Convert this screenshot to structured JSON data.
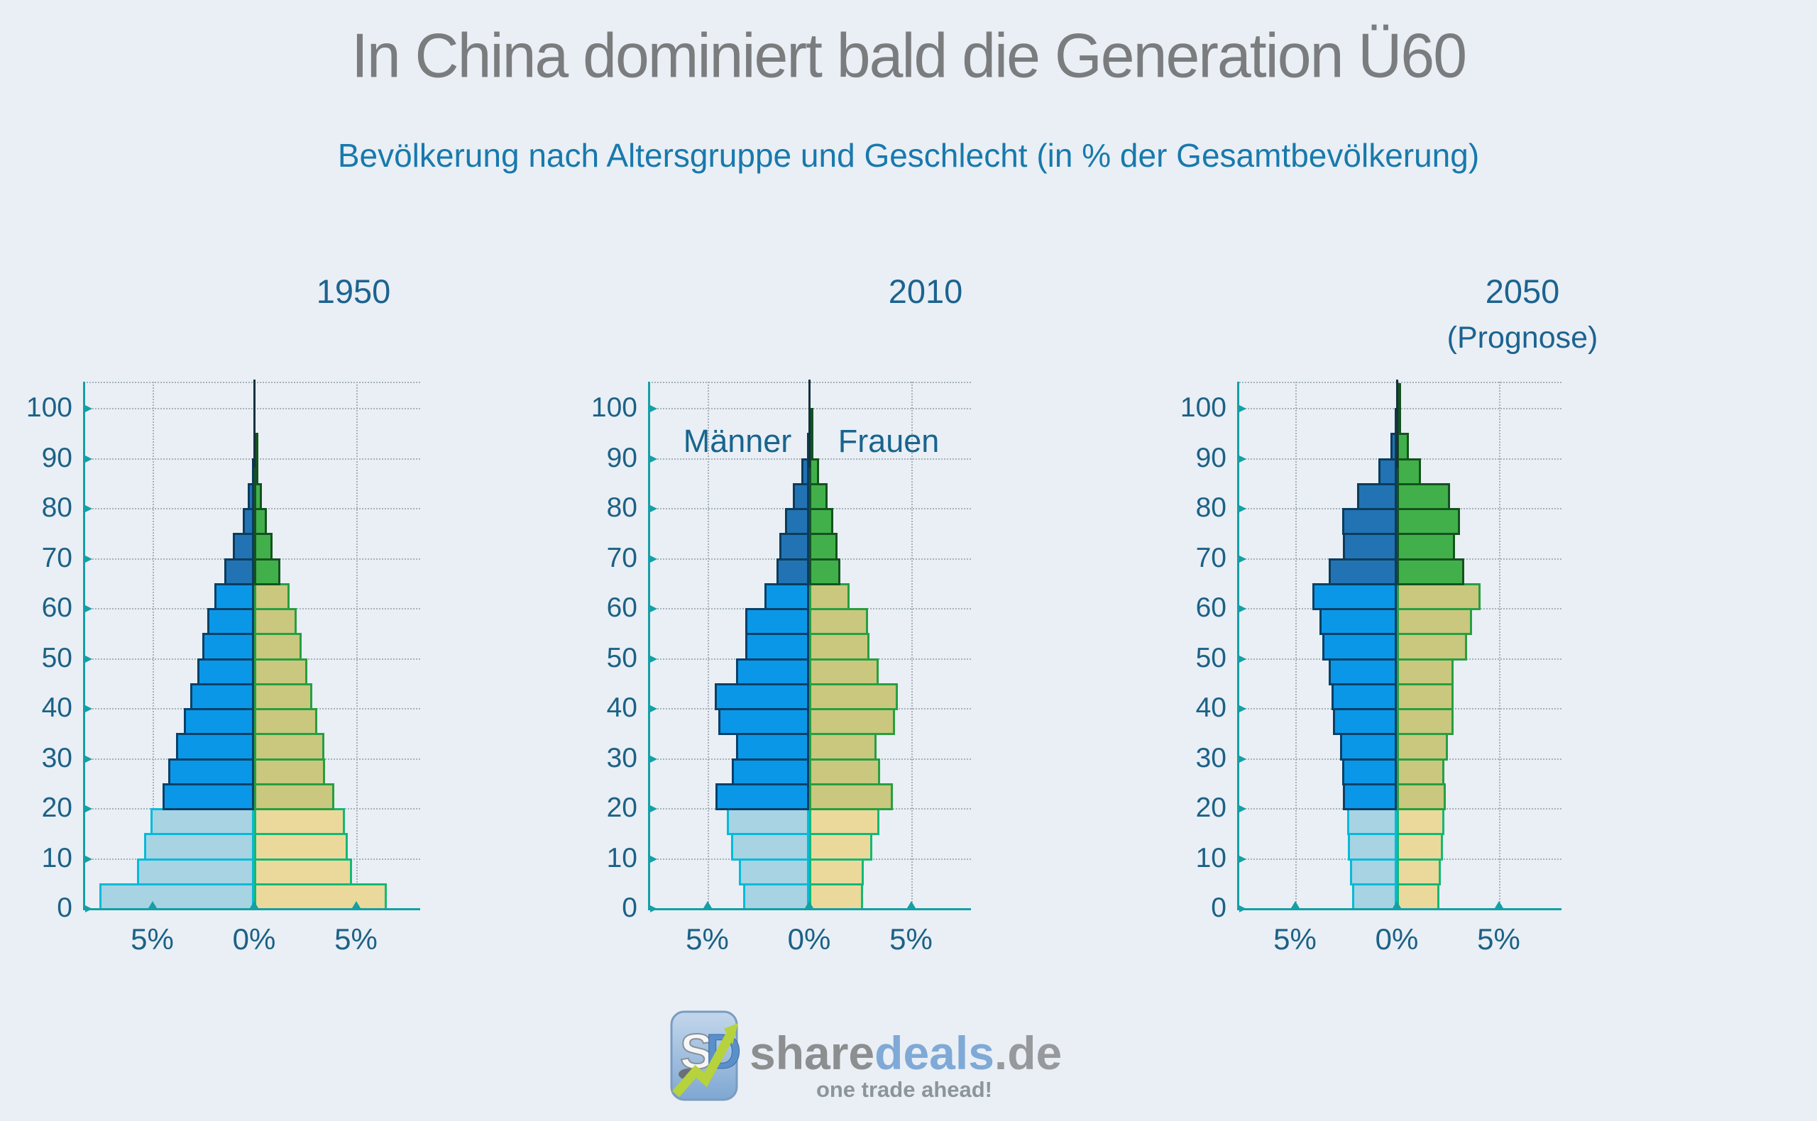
{
  "page": {
    "title": "In China dominiert bald die Generation Ü60",
    "subtitle": "Bevölkerung nach Altersgruppe und Geschlecht (in % der Gesamtbevölkerung)"
  },
  "legend": {
    "male": "Männer",
    "female": "Frauen"
  },
  "axis": {
    "x_tick_labels": [
      "5%",
      "0%",
      "5%"
    ],
    "y_tick_labels": [
      "0",
      "10",
      "20",
      "30",
      "40",
      "50",
      "60",
      "70",
      "80",
      "90",
      "100"
    ]
  },
  "logo": {
    "badge_text": "SD",
    "name_gray": "share",
    "name_blue": "deals",
    "name_suffix": ".de",
    "tagline": "one trade ahead!"
  },
  "colors": {
    "background": "#e9eff5",
    "title_gray": "#7a7c7e",
    "subtitle_blue": "#1879ad",
    "label_blue": "#1c6186",
    "axis_teal": "#13a0a6",
    "grid_gray": "#a6b1b9",
    "spike_dark": "#14323c",
    "male": {
      "young": {
        "fill": "#a7d3e3",
        "stroke": "#07bad8"
      },
      "mid": {
        "fill": "#0b97e8",
        "stroke": "#0a4066"
      },
      "old": {
        "fill": "#2273b4",
        "stroke": "#0a3c5c"
      }
    },
    "female": {
      "young": {
        "fill": "#ead99b",
        "stroke": "#14b876"
      },
      "mid": {
        "fill": "#c9c87e",
        "stroke": "#279f41"
      },
      "old": {
        "fill": "#41b04a",
        "stroke": "#14521f"
      }
    },
    "age_class_breaks": {
      "young_max_age": 19,
      "mid_max_age": 64
    }
  },
  "chart_data": [
    {
      "type": "bar",
      "orientation": "population-pyramid",
      "title": "1950",
      "subtitle": "",
      "xlim_pct": [
        -8,
        8
      ],
      "x_ticks_pct": [
        -5,
        0,
        5
      ],
      "ylim_age": [
        0,
        105
      ],
      "age_groups": [
        "0-4",
        "5-9",
        "10-14",
        "15-19",
        "20-24",
        "25-29",
        "30-34",
        "35-39",
        "40-44",
        "45-49",
        "50-54",
        "55-59",
        "60-64",
        "65-69",
        "70-74",
        "75-79",
        "80-84",
        "85-89",
        "90-94",
        "95-99",
        "100+"
      ],
      "series": [
        {
          "name": "Männer",
          "side": "left",
          "values": [
            7.6,
            5.75,
            5.4,
            5.1,
            4.5,
            4.2,
            3.85,
            3.45,
            3.15,
            2.8,
            2.55,
            2.3,
            1.95,
            1.45,
            1.05,
            0.57,
            0.33,
            0.12,
            0.04,
            0.01,
            0.005
          ]
        },
        {
          "name": "Frauen",
          "side": "right",
          "values": [
            6.5,
            4.8,
            4.6,
            4.45,
            3.95,
            3.5,
            3.45,
            3.1,
            2.85,
            2.6,
            2.35,
            2.1,
            1.75,
            1.3,
            0.92,
            0.62,
            0.4,
            0.16,
            0.06,
            0.02,
            0.01
          ]
        }
      ]
    },
    {
      "type": "bar",
      "orientation": "population-pyramid",
      "title": "2010",
      "subtitle": "",
      "xlim_pct": [
        -8,
        8
      ],
      "x_ticks_pct": [
        -5,
        0,
        5
      ],
      "ylim_age": [
        0,
        105
      ],
      "age_groups": [
        "0-4",
        "5-9",
        "10-14",
        "15-19",
        "20-24",
        "25-29",
        "30-34",
        "35-39",
        "40-44",
        "45-49",
        "50-54",
        "55-59",
        "60-64",
        "65-69",
        "70-74",
        "75-79",
        "80-84",
        "85-89",
        "90-94",
        "95-99",
        "100+"
      ],
      "series": [
        {
          "name": "Männer",
          "side": "left",
          "values": [
            3.25,
            3.45,
            3.85,
            4.05,
            4.6,
            3.8,
            3.6,
            4.45,
            4.65,
            3.6,
            3.15,
            3.15,
            2.2,
            1.6,
            1.45,
            1.2,
            0.8,
            0.4,
            0.12,
            0.03,
            0.01
          ]
        },
        {
          "name": "Frauen",
          "side": "right",
          "values": [
            2.65,
            2.7,
            3.1,
            3.45,
            4.1,
            3.5,
            3.3,
            4.2,
            4.35,
            3.4,
            2.95,
            2.9,
            2.0,
            1.55,
            1.4,
            1.2,
            0.9,
            0.5,
            0.22,
            0.07,
            0.02
          ]
        }
      ]
    },
    {
      "type": "bar",
      "orientation": "population-pyramid",
      "title": "2050",
      "subtitle": "(Prognose)",
      "xlim_pct": [
        -8,
        8
      ],
      "x_ticks_pct": [
        -5,
        0,
        5
      ],
      "ylim_age": [
        0,
        105
      ],
      "age_groups": [
        "0-4",
        "5-9",
        "10-14",
        "15-19",
        "20-24",
        "25-29",
        "30-34",
        "35-39",
        "40-44",
        "45-49",
        "50-54",
        "55-59",
        "60-64",
        "65-69",
        "70-74",
        "75-79",
        "80-84",
        "85-89",
        "90-94",
        "95-99",
        "100+"
      ],
      "series": [
        {
          "name": "Männer",
          "side": "left",
          "values": [
            2.2,
            2.3,
            2.4,
            2.45,
            2.65,
            2.7,
            2.8,
            3.15,
            3.2,
            3.35,
            3.65,
            3.8,
            4.15,
            3.35,
            2.65,
            2.7,
            1.95,
            0.9,
            0.33,
            0.1,
            0.02
          ]
        },
        {
          "name": "Frauen",
          "side": "right",
          "values": [
            2.1,
            2.15,
            2.25,
            2.35,
            2.4,
            2.35,
            2.5,
            2.8,
            2.8,
            2.8,
            3.45,
            3.7,
            4.1,
            3.3,
            2.85,
            3.1,
            2.6,
            1.2,
            0.6,
            0.22,
            0.06
          ]
        }
      ]
    }
  ]
}
